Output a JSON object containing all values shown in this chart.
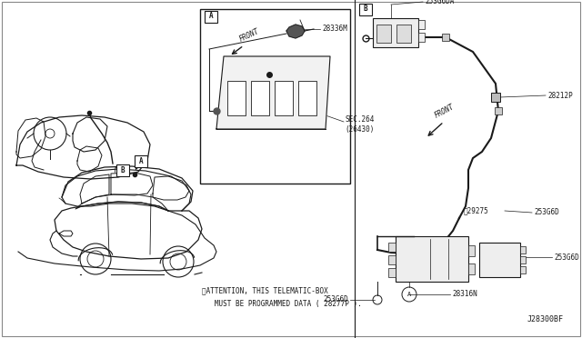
{
  "bg_color": "#ffffff",
  "line_color": "#1a1a1a",
  "text_color": "#1a1a1a",
  "fig_width": 6.4,
  "fig_height": 3.72,
  "dpi": 100,
  "parts": {
    "253G6DA": "253G6DA",
    "28212P": "28212P",
    "29275": "29275",
    "253G6D_r": "253G6D",
    "28316N": "28316N",
    "253G6D_b": "253G6D",
    "J28300BF": "J28300BF",
    "28336M": "28336M",
    "SEC264": "SEC.264",
    "26430": "(26430)"
  },
  "attention_1": "※ATTENTION, THIS TELEMATIC-BOX",
  "attention_2": "   MUST BE PROGRAMMED DATA ( 28277P ).",
  "front_label": "FRONT"
}
